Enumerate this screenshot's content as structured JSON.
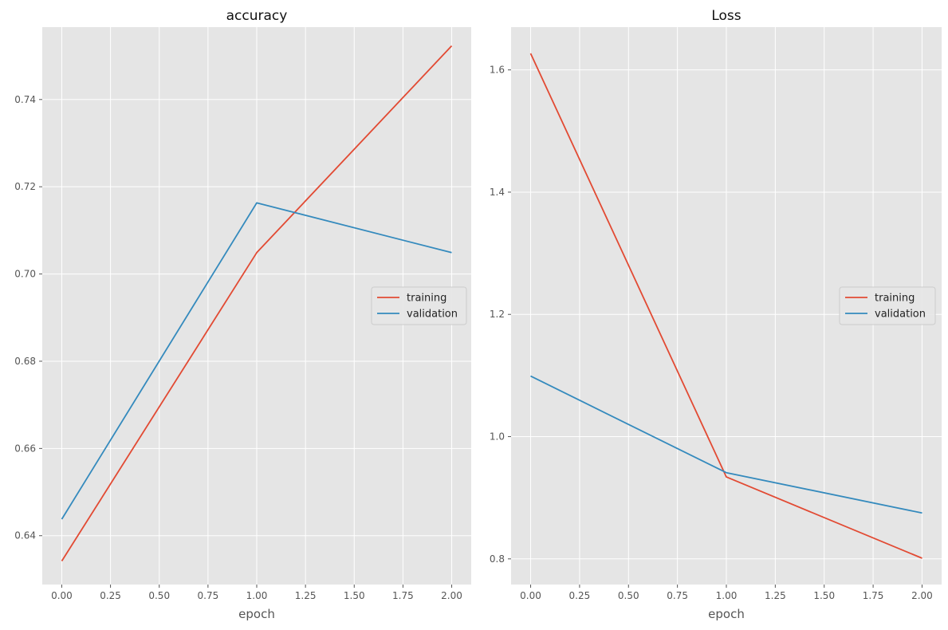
{
  "chart_data": [
    {
      "type": "line",
      "title": "accuracy",
      "xlabel": "epoch",
      "ylabel": "",
      "x": [
        0,
        1,
        2
      ],
      "xlim": [
        -0.1,
        2.1
      ],
      "ylim": [
        0.6288,
        0.7566
      ],
      "xticks": [
        "0.00",
        "0.25",
        "0.50",
        "0.75",
        "1.00",
        "1.25",
        "1.50",
        "1.75",
        "2.00"
      ],
      "xtick_values": [
        0,
        0.25,
        0.5,
        0.75,
        1,
        1.25,
        1.5,
        1.75,
        2
      ],
      "yticks": [
        "0.64",
        "0.66",
        "0.68",
        "0.70",
        "0.72",
        "0.74"
      ],
      "ytick_values": [
        0.64,
        0.66,
        0.68,
        0.7,
        0.72,
        0.74
      ],
      "grid": true,
      "legend_position": "center-right",
      "series": [
        {
          "name": "training",
          "color": "#E24A33",
          "values": [
            0.6342,
            0.7049,
            0.7523
          ]
        },
        {
          "name": "validation",
          "color": "#348ABD",
          "values": [
            0.6438,
            0.7163,
            0.7049
          ]
        }
      ]
    },
    {
      "type": "line",
      "title": "Loss",
      "xlabel": "epoch",
      "ylabel": "",
      "x": [
        0,
        1,
        2
      ],
      "xlim": [
        -0.1,
        2.1
      ],
      "ylim": [
        0.758,
        1.67
      ],
      "xticks": [
        "0.00",
        "0.25",
        "0.50",
        "0.75",
        "1.00",
        "1.25",
        "1.50",
        "1.75",
        "2.00"
      ],
      "xtick_values": [
        0,
        0.25,
        0.5,
        0.75,
        1,
        1.25,
        1.5,
        1.75,
        2
      ],
      "yticks": [
        "0.8",
        "1.0",
        "1.2",
        "1.4",
        "1.6"
      ],
      "ytick_values": [
        0.8,
        1.0,
        1.2,
        1.4,
        1.6
      ],
      "grid": true,
      "legend_position": "center-right",
      "series": [
        {
          "name": "training",
          "color": "#E24A33",
          "values": [
            1.627,
            0.934,
            0.801
          ]
        },
        {
          "name": "validation",
          "color": "#348ABD",
          "values": [
            1.099,
            0.941,
            0.875
          ]
        }
      ]
    }
  ]
}
